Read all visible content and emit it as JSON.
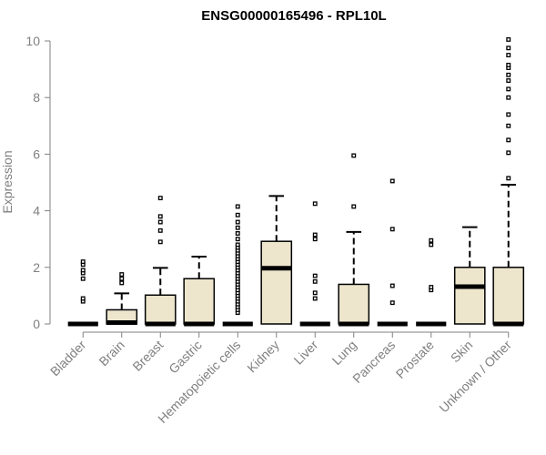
{
  "chart_data": {
    "type": "boxplot",
    "title": "ENSG00000165496 - RPL10L",
    "ylabel": "Expression",
    "xlabel": "",
    "ylim": [
      0,
      10
    ],
    "yticks": [
      0,
      2,
      4,
      6,
      8,
      10
    ],
    "grid": false,
    "legend": "none",
    "box_fill": "#ede6cd",
    "box_stroke": "#000000",
    "axis_color": "#808080",
    "categories": [
      "Bladder",
      "Brain",
      "Breast",
      "Gastric",
      "Hematopoietic cells",
      "Kidney",
      "Liver",
      "Lung",
      "Pancreas",
      "Prostate",
      "Skin",
      "Unknown / Other"
    ],
    "boxes": [
      {
        "category": "Bladder",
        "min": 0,
        "q1": 0,
        "median": 0,
        "q3": 0,
        "max": 0,
        "outliers": [
          0.8,
          0.9,
          1.6,
          1.8,
          1.9,
          2.1,
          2.2
        ]
      },
      {
        "category": "Brain",
        "min": 0,
        "q1": 0,
        "median": 0.05,
        "q3": 0.5,
        "max": 1.08,
        "outliers": [
          1.45,
          1.6,
          1.75
        ]
      },
      {
        "category": "Breast",
        "min": 0,
        "q1": 0,
        "median": 0,
        "q3": 1.02,
        "max": 1.98,
        "outliers": [
          2.9,
          3.3,
          3.6,
          3.8,
          4.45
        ]
      },
      {
        "category": "Gastric",
        "min": 0,
        "q1": 0,
        "median": 0,
        "q3": 1.6,
        "max": 2.38,
        "outliers": []
      },
      {
        "category": "Hematopoietic cells",
        "min": 0,
        "q1": 0,
        "median": 0,
        "q3": 0,
        "max": 0,
        "outliers": [
          0.4,
          0.5,
          0.6,
          0.7,
          0.8,
          0.9,
          1.0,
          1.1,
          1.2,
          1.3,
          1.4,
          1.5,
          1.6,
          1.7,
          1.8,
          1.9,
          2.0,
          2.1,
          2.2,
          2.3,
          2.4,
          2.5,
          2.6,
          2.7,
          2.8,
          3.0,
          3.2,
          3.4,
          3.6,
          3.85,
          4.15
        ]
      },
      {
        "category": "Kidney",
        "min": 0,
        "q1": 0,
        "median": 1.97,
        "q3": 2.92,
        "max": 4.52,
        "outliers": []
      },
      {
        "category": "Liver",
        "min": 0,
        "q1": 0,
        "median": 0,
        "q3": 0,
        "max": 0,
        "outliers": [
          0.9,
          1.1,
          1.5,
          1.7,
          3.0,
          3.15,
          4.25
        ]
      },
      {
        "category": "Lung",
        "min": 0,
        "q1": 0,
        "median": 0,
        "q3": 1.4,
        "max": 3.25,
        "outliers": [
          4.15,
          5.95
        ]
      },
      {
        "category": "Pancreas",
        "min": 0,
        "q1": 0,
        "median": 0,
        "q3": 0,
        "max": 0,
        "outliers": [
          0.75,
          1.35,
          3.35,
          5.05
        ]
      },
      {
        "category": "Prostate",
        "min": 0,
        "q1": 0,
        "median": 0,
        "q3": 0,
        "max": 0,
        "outliers": [
          1.2,
          1.3,
          2.8,
          2.95
        ]
      },
      {
        "category": "Skin",
        "min": 0,
        "q1": 0,
        "median": 1.32,
        "q3": 2.0,
        "max": 3.42,
        "outliers": []
      },
      {
        "category": "Unknown / Other",
        "min": 0,
        "q1": 0,
        "median": 0,
        "q3": 2.0,
        "max": 4.92,
        "outliers": [
          5.15,
          6.05,
          6.5,
          7.0,
          7.4,
          8.0,
          8.3,
          8.6,
          8.8,
          9.05,
          9.15,
          9.5,
          9.75,
          10.05
        ]
      }
    ]
  }
}
